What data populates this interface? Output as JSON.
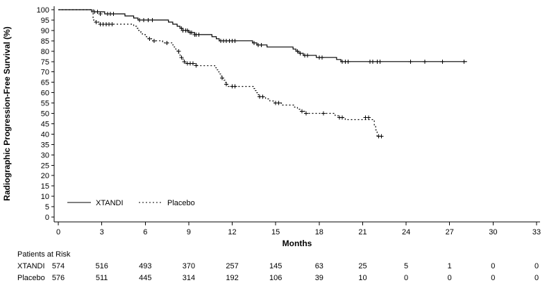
{
  "chart_data": {
    "type": "line",
    "subtype": "kaplan-meier-step",
    "title": "",
    "ylabel": "Radiographic Progression-Free Survival (%)",
    "xlabel": "Months",
    "xlim": [
      0,
      33
    ],
    "ylim": [
      0,
      100
    ],
    "xticks": [
      0,
      3,
      6,
      9,
      12,
      15,
      18,
      21,
      24,
      27,
      30,
      33
    ],
    "yticks": [
      0,
      5,
      10,
      15,
      20,
      25,
      30,
      35,
      40,
      45,
      50,
      55,
      60,
      65,
      70,
      75,
      80,
      85,
      90,
      95,
      100
    ],
    "grid": false,
    "legend_position": "inside-bottom-left",
    "line_color": "#000000",
    "series": [
      {
        "name": "XTANDI",
        "style": "solid",
        "steps": [
          [
            0,
            100
          ],
          [
            2.3,
            99
          ],
          [
            3.2,
            98
          ],
          [
            4.6,
            97
          ],
          [
            5.2,
            96
          ],
          [
            5.5,
            95
          ],
          [
            7.6,
            94
          ],
          [
            7.9,
            93
          ],
          [
            8.2,
            92
          ],
          [
            8.4,
            91
          ],
          [
            8.6,
            90
          ],
          [
            9.0,
            89
          ],
          [
            9.4,
            88
          ],
          [
            10.6,
            87
          ],
          [
            10.9,
            86
          ],
          [
            11.1,
            85
          ],
          [
            13.4,
            84
          ],
          [
            13.7,
            83
          ],
          [
            14.4,
            82
          ],
          [
            16.2,
            81
          ],
          [
            16.4,
            80
          ],
          [
            16.6,
            79
          ],
          [
            16.9,
            78
          ],
          [
            17.8,
            77
          ],
          [
            19.2,
            76
          ],
          [
            19.5,
            75
          ],
          [
            28.2,
            75
          ]
        ],
        "censors": [
          [
            2.5,
            99
          ],
          [
            2.7,
            99
          ],
          [
            2.9,
            98
          ],
          [
            3.4,
            98
          ],
          [
            3.6,
            98
          ],
          [
            3.8,
            98
          ],
          [
            5.6,
            95
          ],
          [
            5.9,
            95
          ],
          [
            6.2,
            95
          ],
          [
            6.5,
            95
          ],
          [
            8.5,
            91
          ],
          [
            8.6,
            90
          ],
          [
            8.8,
            90
          ],
          [
            8.9,
            90
          ],
          [
            9.1,
            89
          ],
          [
            9.2,
            89
          ],
          [
            9.4,
            88
          ],
          [
            9.5,
            88
          ],
          [
            9.7,
            88
          ],
          [
            11.2,
            85
          ],
          [
            11.4,
            85
          ],
          [
            11.6,
            85
          ],
          [
            11.8,
            85
          ],
          [
            12.0,
            85
          ],
          [
            12.2,
            85
          ],
          [
            13.5,
            84
          ],
          [
            13.8,
            83
          ],
          [
            14.0,
            83
          ],
          [
            16.5,
            80
          ],
          [
            16.7,
            79
          ],
          [
            17.0,
            78
          ],
          [
            17.2,
            78
          ],
          [
            18.0,
            77
          ],
          [
            18.2,
            77
          ],
          [
            19.6,
            75
          ],
          [
            19.8,
            75
          ],
          [
            20.0,
            75
          ],
          [
            21.5,
            75
          ],
          [
            21.7,
            75
          ],
          [
            22.0,
            75
          ],
          [
            22.2,
            75
          ],
          [
            24.3,
            75
          ],
          [
            25.3,
            75
          ],
          [
            26.5,
            75
          ],
          [
            28.0,
            75
          ]
        ]
      },
      {
        "name": "Placebo",
        "style": "dotted",
        "steps": [
          [
            0,
            100
          ],
          [
            2.4,
            95
          ],
          [
            2.6,
            94
          ],
          [
            2.8,
            93
          ],
          [
            5.2,
            92
          ],
          [
            5.4,
            91
          ],
          [
            5.5,
            90
          ],
          [
            5.7,
            89
          ],
          [
            5.8,
            88
          ],
          [
            6.0,
            87
          ],
          [
            6.2,
            86
          ],
          [
            6.5,
            85
          ],
          [
            7.2,
            84
          ],
          [
            7.9,
            83
          ],
          [
            8.0,
            82
          ],
          [
            8.1,
            81
          ],
          [
            8.2,
            80
          ],
          [
            8.3,
            79
          ],
          [
            8.4,
            78
          ],
          [
            8.5,
            77
          ],
          [
            8.6,
            76
          ],
          [
            8.7,
            75
          ],
          [
            8.8,
            74
          ],
          [
            9.6,
            73
          ],
          [
            10.8,
            72
          ],
          [
            10.9,
            71
          ],
          [
            11.0,
            70
          ],
          [
            11.1,
            69
          ],
          [
            11.2,
            68
          ],
          [
            11.3,
            67
          ],
          [
            11.4,
            66
          ],
          [
            11.5,
            65
          ],
          [
            11.6,
            64
          ],
          [
            11.7,
            63
          ],
          [
            13.5,
            62
          ],
          [
            13.6,
            61
          ],
          [
            13.7,
            60
          ],
          [
            13.8,
            59
          ],
          [
            13.9,
            58
          ],
          [
            14.3,
            57
          ],
          [
            14.6,
            56
          ],
          [
            14.9,
            55
          ],
          [
            15.4,
            54
          ],
          [
            16.3,
            53
          ],
          [
            16.5,
            52
          ],
          [
            16.7,
            51
          ],
          [
            17.0,
            50
          ],
          [
            19.1,
            49
          ],
          [
            19.3,
            48
          ],
          [
            19.8,
            47
          ],
          [
            21.8,
            44
          ],
          [
            21.9,
            42
          ],
          [
            22.0,
            39
          ],
          [
            22.4,
            39
          ]
        ],
        "censors": [
          [
            2.6,
            94
          ],
          [
            2.9,
            93
          ],
          [
            3.1,
            93
          ],
          [
            3.3,
            93
          ],
          [
            3.5,
            93
          ],
          [
            3.7,
            93
          ],
          [
            6.3,
            86
          ],
          [
            6.6,
            85
          ],
          [
            7.5,
            84
          ],
          [
            8.3,
            80
          ],
          [
            8.5,
            77
          ],
          [
            8.7,
            75
          ],
          [
            8.9,
            74
          ],
          [
            9.1,
            74
          ],
          [
            9.3,
            74
          ],
          [
            9.5,
            73
          ],
          [
            11.3,
            67
          ],
          [
            11.6,
            64
          ],
          [
            12.0,
            63
          ],
          [
            12.2,
            63
          ],
          [
            13.9,
            58
          ],
          [
            14.1,
            58
          ],
          [
            15.0,
            55
          ],
          [
            15.2,
            55
          ],
          [
            16.8,
            51
          ],
          [
            17.1,
            50
          ],
          [
            18.3,
            50
          ],
          [
            19.4,
            48
          ],
          [
            19.6,
            48
          ],
          [
            21.2,
            48
          ],
          [
            21.4,
            48
          ],
          [
            22.1,
            39
          ],
          [
            22.3,
            39
          ]
        ]
      }
    ]
  },
  "at_risk": {
    "title": "Patients at Risk",
    "rows": [
      {
        "label": "XTANDI",
        "values": [
          574,
          516,
          493,
          370,
          257,
          145,
          63,
          25,
          5,
          1,
          0,
          0
        ]
      },
      {
        "label": "Placebo",
        "values": [
          576,
          511,
          445,
          314,
          192,
          106,
          39,
          10,
          0,
          0,
          0,
          0
        ]
      }
    ]
  }
}
